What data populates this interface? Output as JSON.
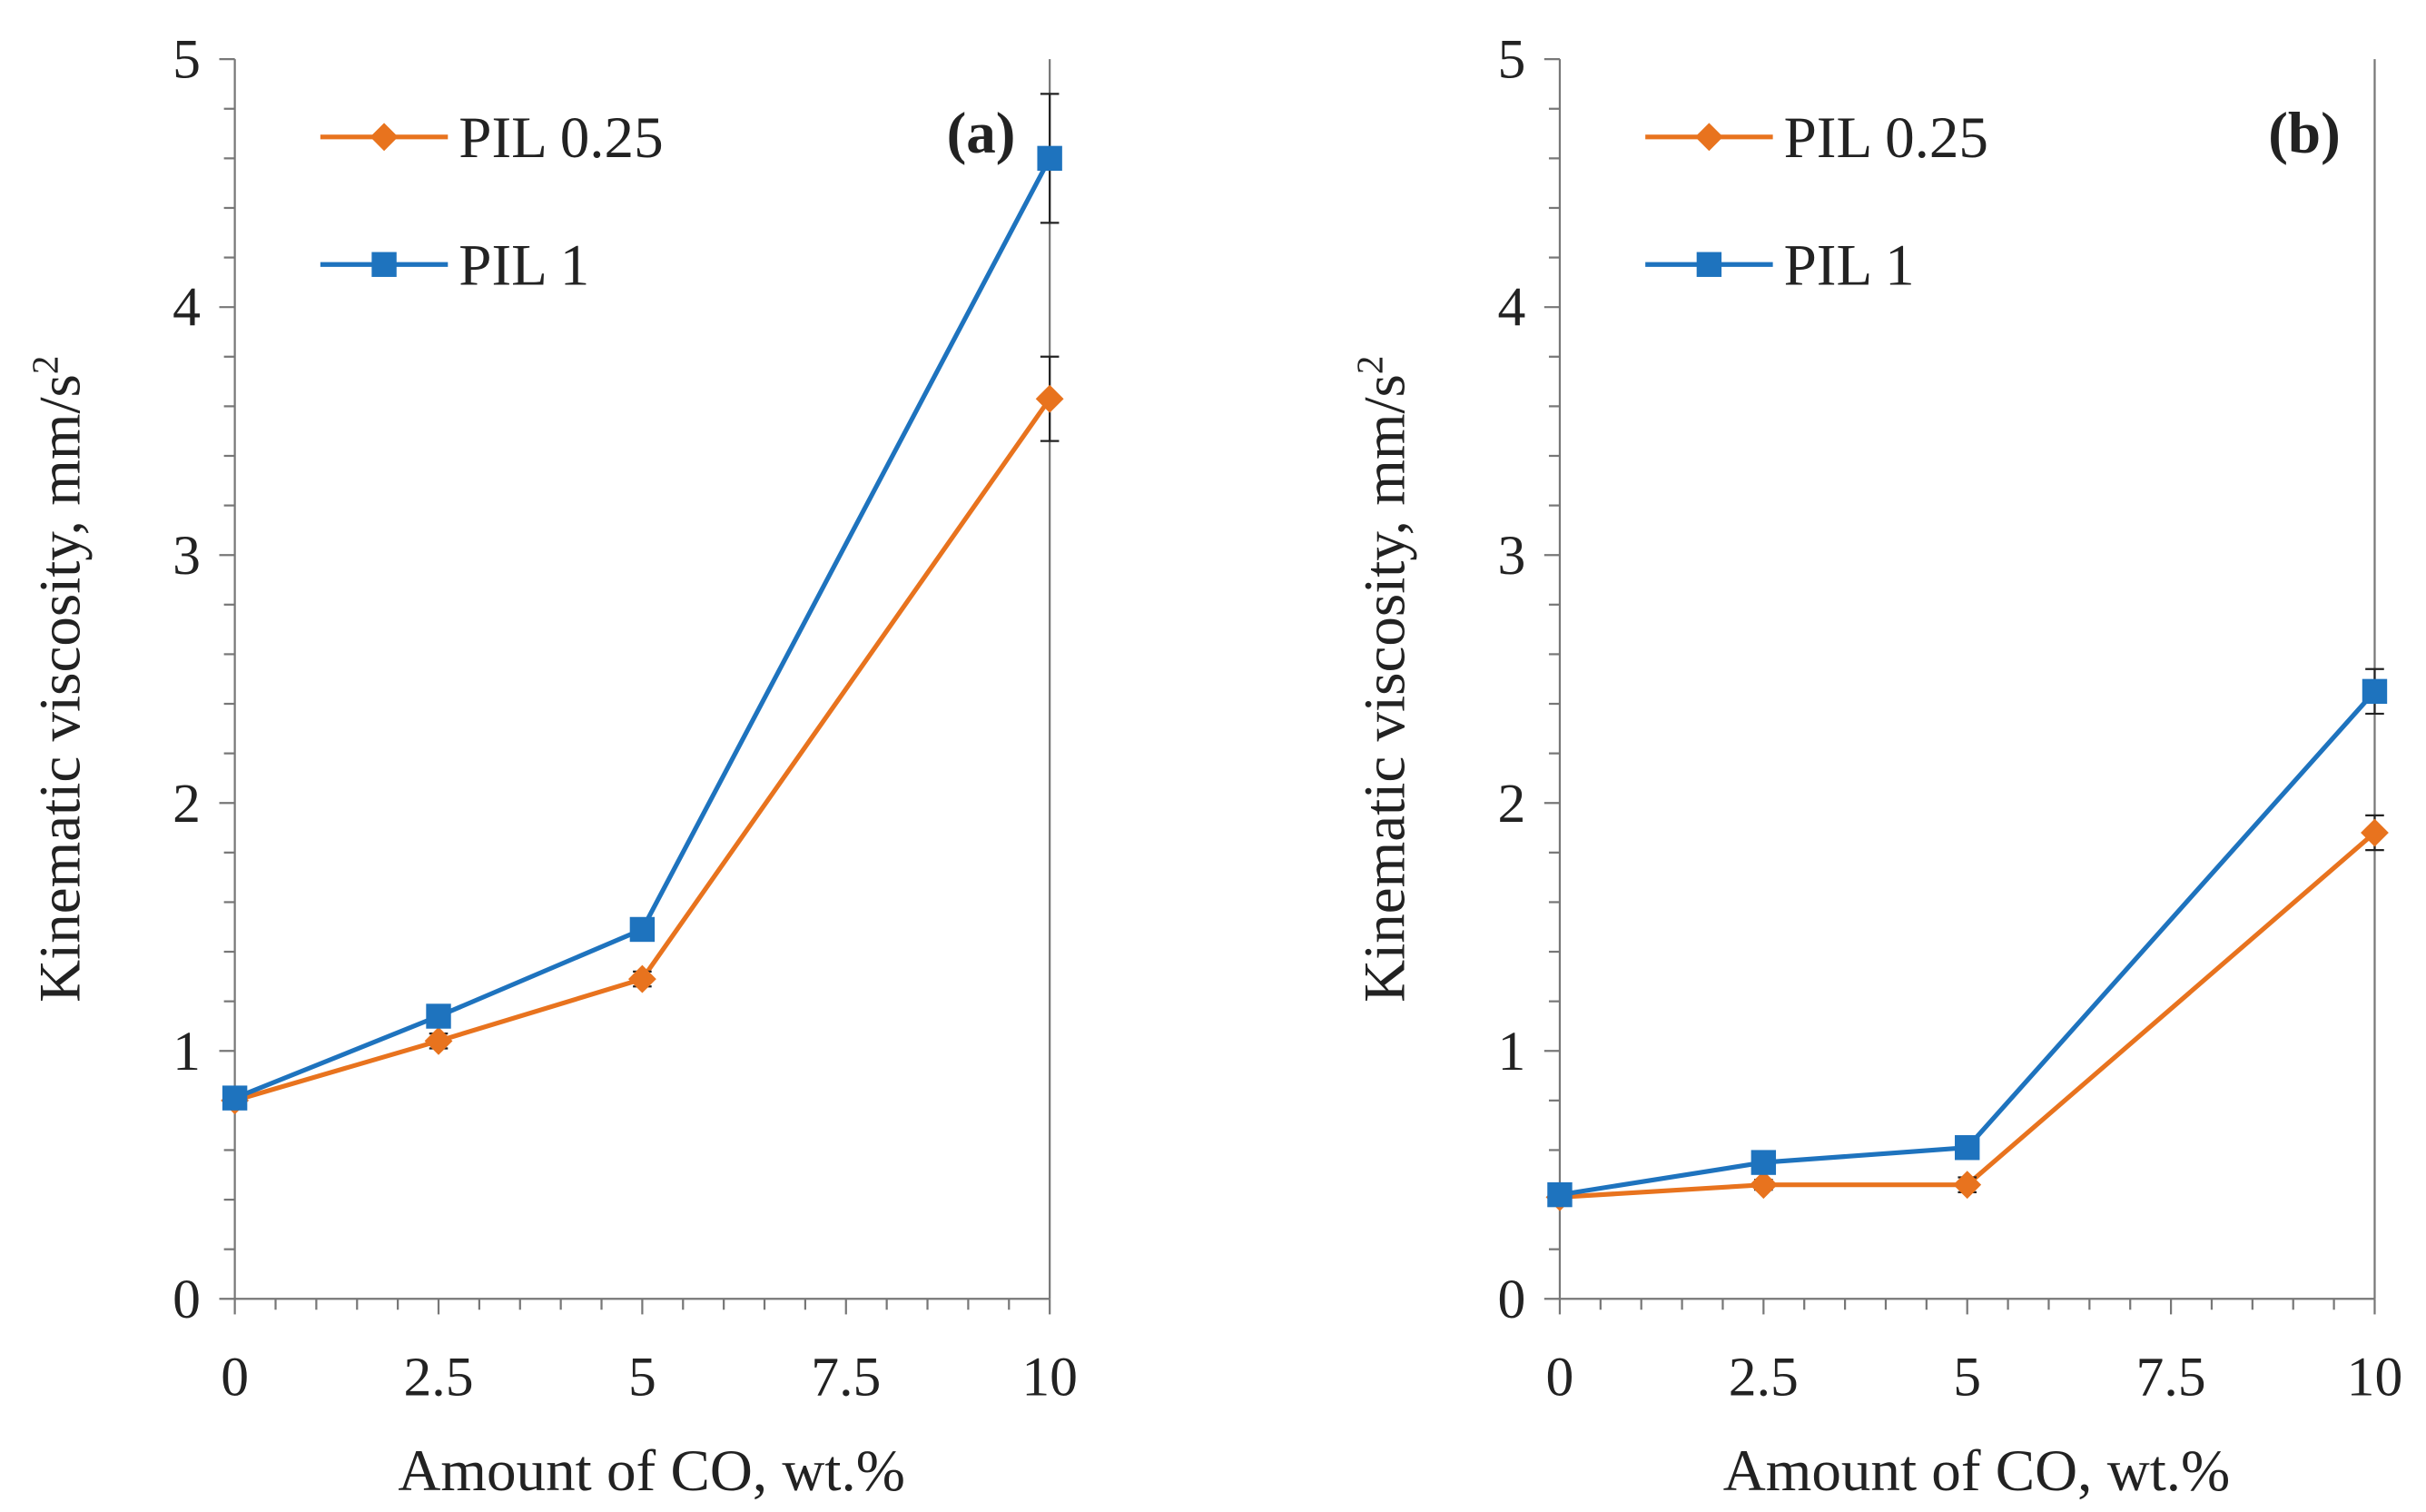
{
  "chart_data": [
    {
      "type": "line",
      "panel_label": "(a)",
      "xlabel": "Amount of CO, wt.%",
      "ylabel": "Kinematic viscosity, mm/s",
      "ylabel_superscript": "2",
      "x": [
        0,
        2.5,
        5,
        10
      ],
      "xticks": [
        "0",
        "2.5",
        "5",
        "7.5",
        "10"
      ],
      "yticks": [
        "0",
        "1",
        "2",
        "3",
        "4",
        "5"
      ],
      "xlim": [
        0,
        10
      ],
      "ylim": [
        0,
        5
      ],
      "grid": false,
      "legend_position": "top-left",
      "series": [
        {
          "name": "PIL 0.25",
          "marker": "diamond",
          "color": "#E8731E",
          "values": [
            0.8,
            1.04,
            1.29,
            3.63
          ],
          "error": [
            0.02,
            0.03,
            0.03,
            0.17
          ]
        },
        {
          "name": "PIL 1",
          "marker": "square",
          "color": "#1E73BE",
          "values": [
            0.81,
            1.14,
            1.49,
            4.6
          ],
          "error": [
            0.02,
            0.04,
            0.03,
            0.26
          ]
        }
      ]
    },
    {
      "type": "line",
      "panel_label": "(b)",
      "xlabel": "Amount of CO, wt.%",
      "ylabel": "Kinematic viscosity, mm/s",
      "ylabel_superscript": "2",
      "x": [
        0,
        2.5,
        5,
        10
      ],
      "xticks": [
        "0",
        "2.5",
        "5",
        "7.5",
        "10"
      ],
      "yticks": [
        "0",
        "1",
        "2",
        "3",
        "4",
        "5"
      ],
      "xlim": [
        0,
        10
      ],
      "ylim": [
        0,
        5
      ],
      "grid": false,
      "legend_position": "top-left",
      "series": [
        {
          "name": "PIL 0.25",
          "marker": "diamond",
          "color": "#E8731E",
          "values": [
            0.41,
            0.46,
            0.46,
            1.88
          ],
          "error": [
            0.02,
            0.02,
            0.03,
            0.07
          ]
        },
        {
          "name": "PIL 1",
          "marker": "square",
          "color": "#1E73BE",
          "values": [
            0.42,
            0.55,
            0.61,
            2.45
          ],
          "error": [
            0.02,
            0.02,
            0.02,
            0.09
          ]
        }
      ]
    }
  ]
}
